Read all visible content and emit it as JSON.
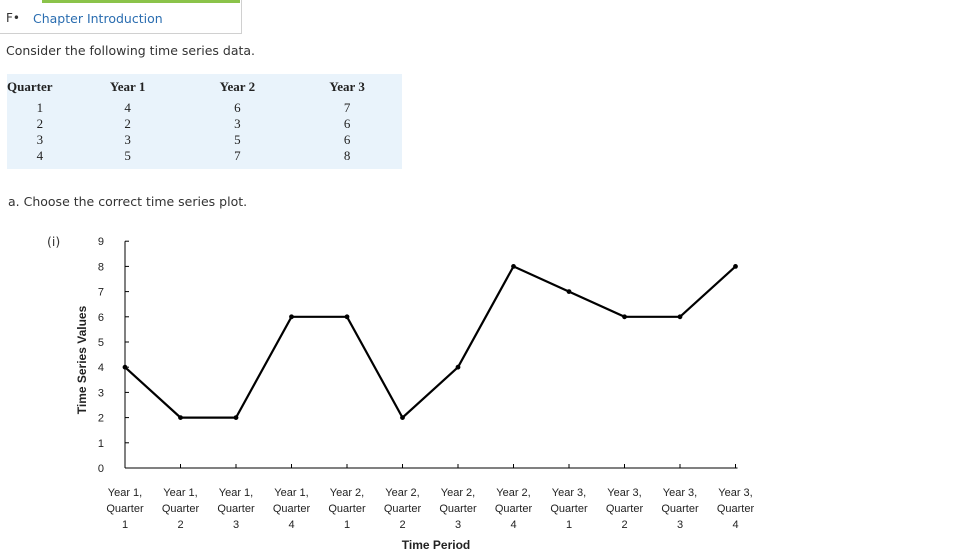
{
  "header": {
    "prefix": "F•",
    "link_label": "Chapter Introduction"
  },
  "intro_text": "Consider the following time series data.",
  "table": {
    "headers": [
      "Quarter",
      "Year 1",
      "Year 2",
      "Year 3"
    ],
    "rows": [
      [
        "1",
        "4",
        "6",
        "7"
      ],
      [
        "2",
        "2",
        "3",
        "6"
      ],
      [
        "3",
        "3",
        "5",
        "6"
      ],
      [
        "4",
        "5",
        "7",
        "8"
      ]
    ]
  },
  "question": "a. Choose the correct time series plot.",
  "option_label": "(i)",
  "chart_data": {
    "type": "line",
    "xlabel": "Time Period",
    "ylabel": "Time Series Values",
    "ylim": [
      0,
      9
    ],
    "yticks": [
      0,
      1,
      2,
      3,
      4,
      5,
      6,
      7,
      8,
      9
    ],
    "categories": [
      [
        "Year 1,",
        "Quarter",
        "1"
      ],
      [
        "Year 1,",
        "Quarter",
        "2"
      ],
      [
        "Year 1,",
        "Quarter",
        "3"
      ],
      [
        "Year 1,",
        "Quarter",
        "4"
      ],
      [
        "Year 2,",
        "Quarter",
        "1"
      ],
      [
        "Year 2,",
        "Quarter",
        "2"
      ],
      [
        "Year 2,",
        "Quarter",
        "3"
      ],
      [
        "Year 2,",
        "Quarter",
        "4"
      ],
      [
        "Year 3,",
        "Quarter",
        "1"
      ],
      [
        "Year 3,",
        "Quarter",
        "2"
      ],
      [
        "Year 3,",
        "Quarter",
        "3"
      ],
      [
        "Year 3,",
        "Quarter",
        "4"
      ]
    ],
    "series": [
      {
        "values": [
          4,
          2,
          2,
          6,
          6,
          2,
          4,
          8,
          7,
          6,
          6,
          8
        ]
      }
    ],
    "grid": false,
    "legend": "none",
    "line_color": "#000000"
  }
}
